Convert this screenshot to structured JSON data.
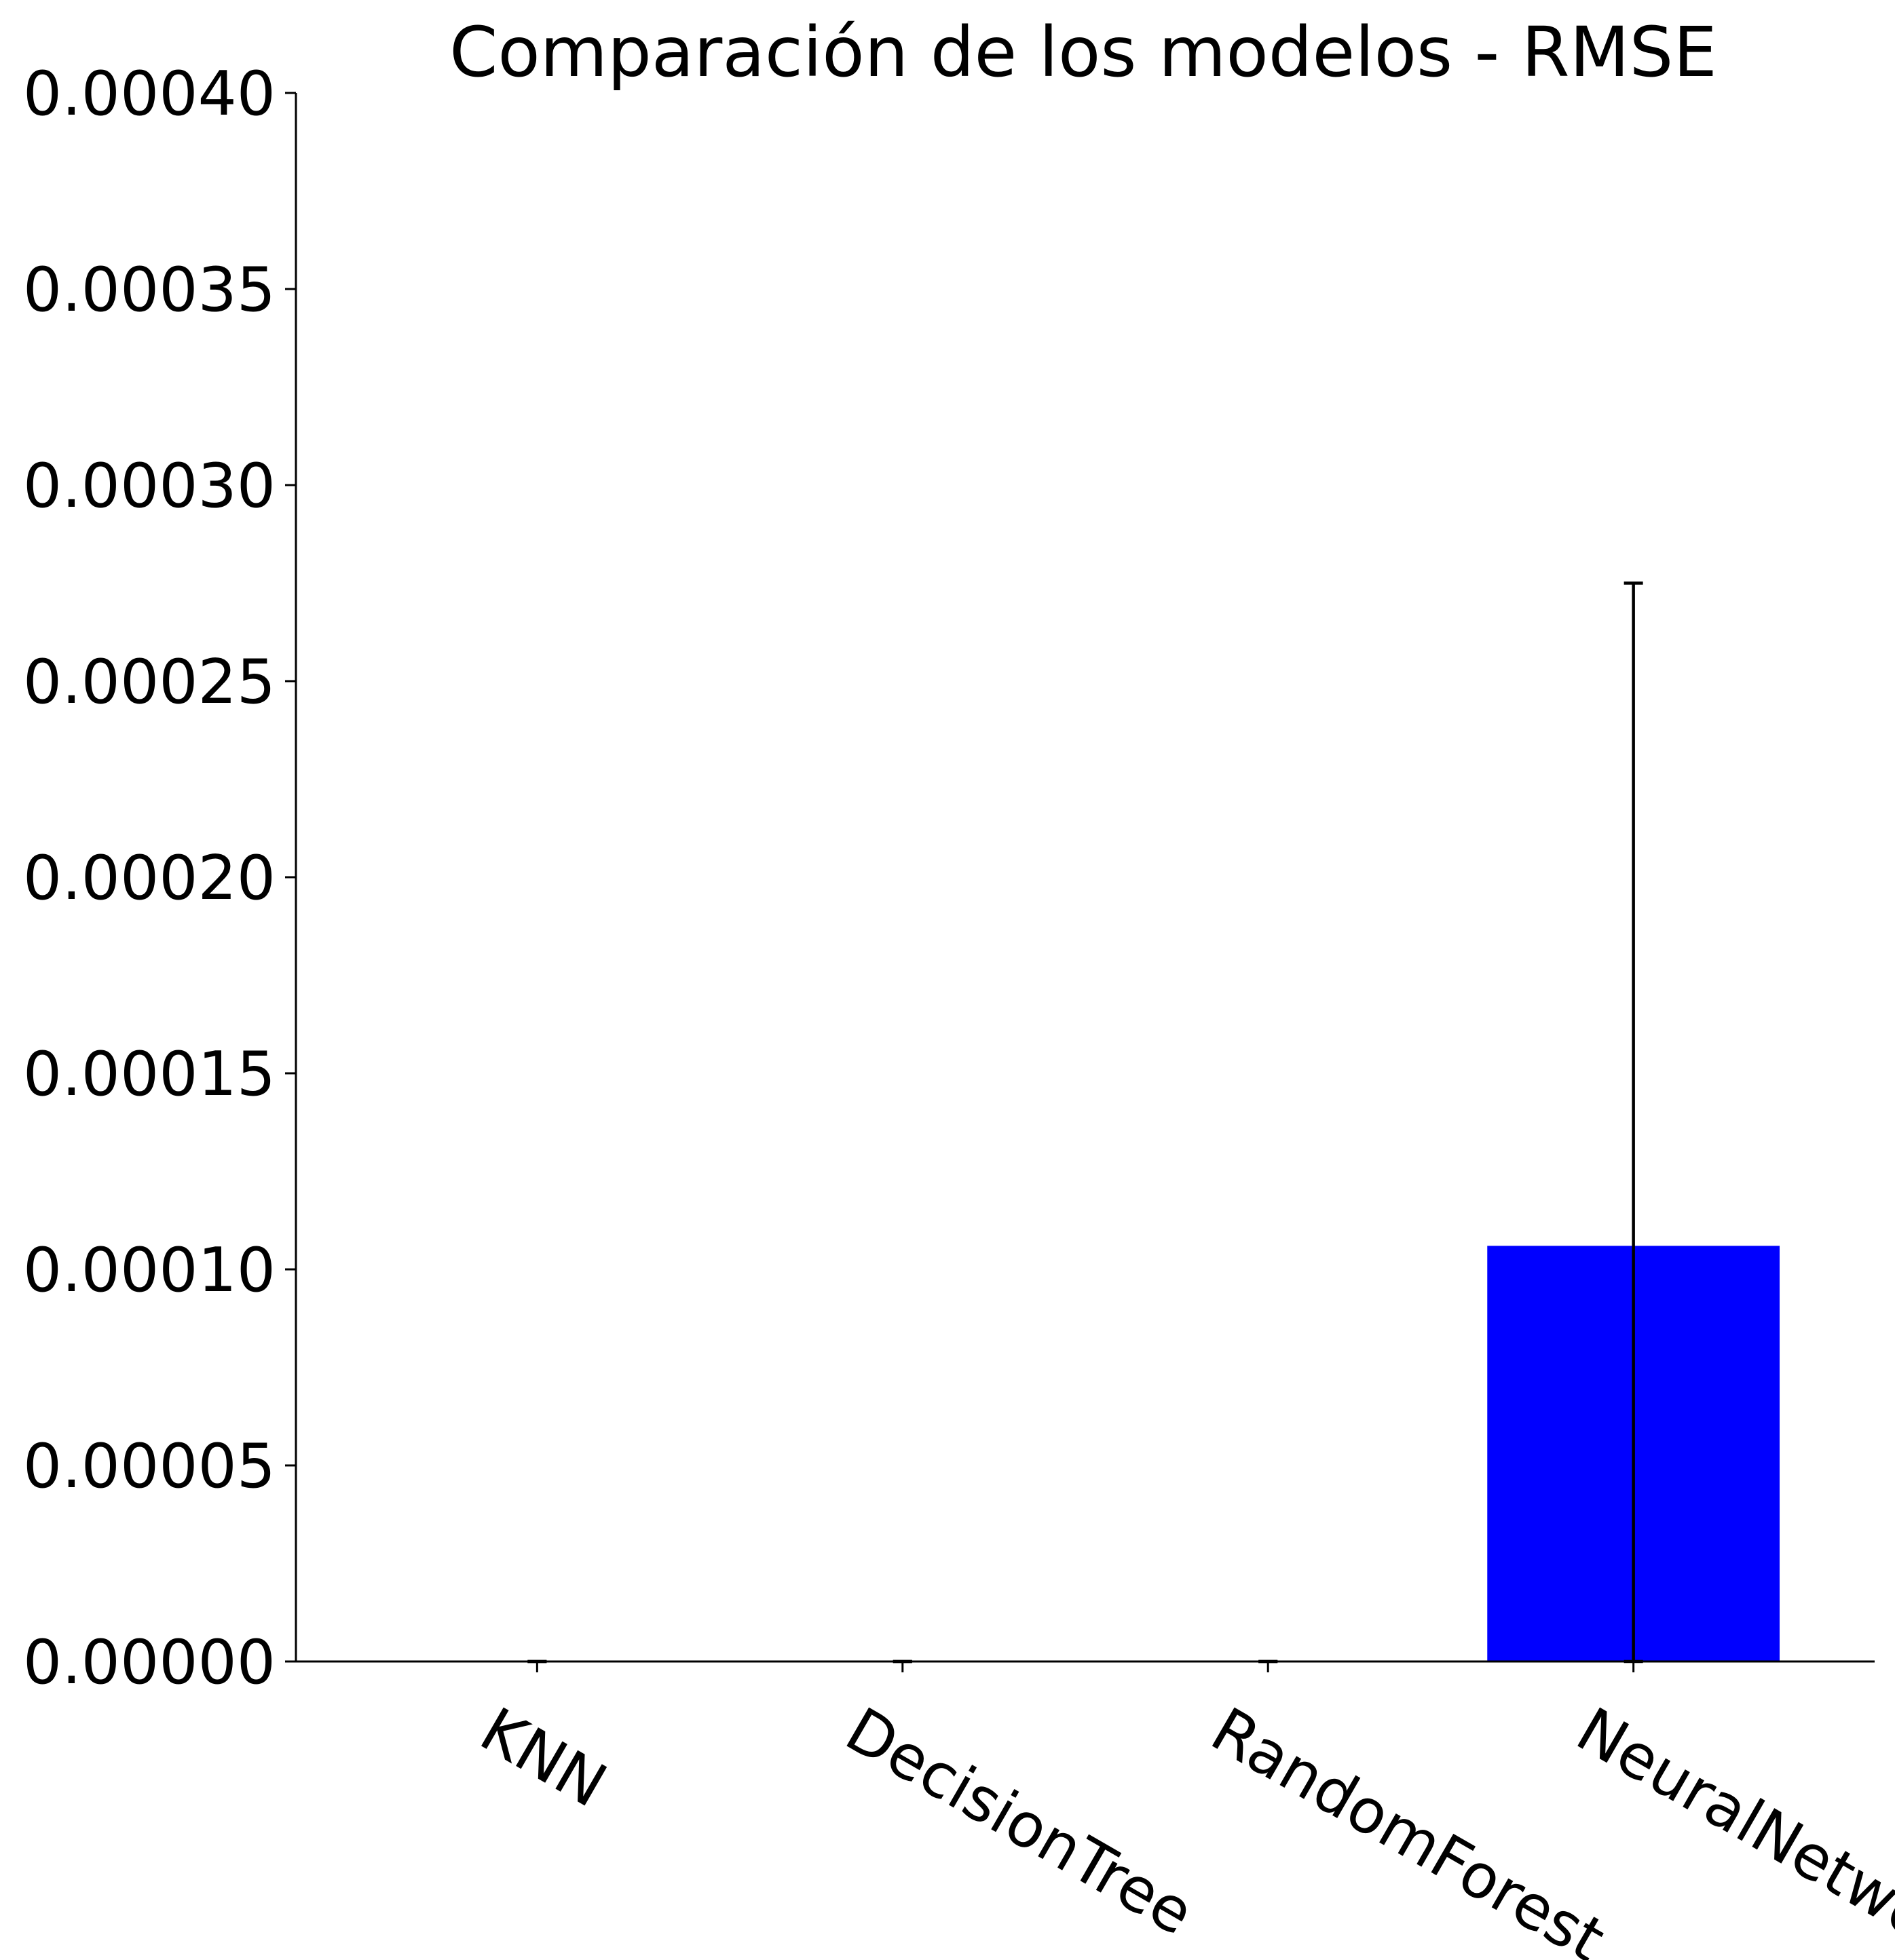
{
  "chart_data": {
    "type": "bar",
    "title": "Comparación de los modelos - RMSE",
    "xlabel": "",
    "ylabel": "",
    "categories": [
      "KNN",
      "DecisionTree",
      "RandomForest",
      "NeuralNetwork"
    ],
    "values": [
      0.0,
      0.0,
      0.0,
      0.000106
    ],
    "error": [
      0.0,
      0.0,
      0.0,
      0.000169
    ],
    "ylim": [
      0,
      0.0004
    ],
    "yticks": [
      0.0,
      5e-05,
      0.0001,
      0.00015,
      0.0002,
      0.00025,
      0.0003,
      0.00035,
      0.0004
    ],
    "ytick_labels": [
      "0.00000",
      "0.00005",
      "0.00010",
      "0.00015",
      "0.00020",
      "0.00025",
      "0.00030",
      "0.00035",
      "0.00040"
    ],
    "grid": false,
    "bar_color": "#0000ff",
    "errorbar_color": "#000000",
    "axis_color": "#000000",
    "xtick_rotation_deg": 30
  }
}
